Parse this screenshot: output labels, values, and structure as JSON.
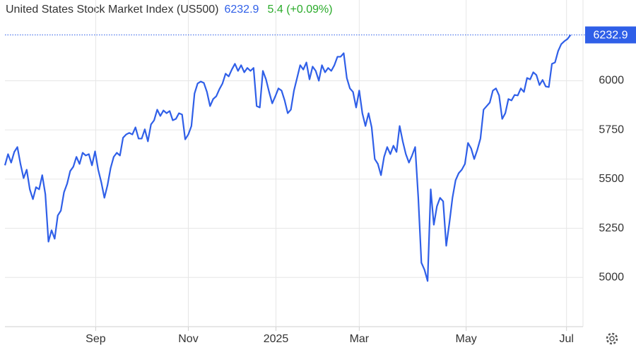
{
  "chart_data": {
    "type": "line",
    "title": "United States Stock Market Index (US500)",
    "change": "5.4 (+0.09%)",
    "series": [
      {
        "name": "US500",
        "color": "#2f5fe8",
        "values": [
          5570,
          5627,
          5584,
          5638,
          5663,
          5577,
          5505,
          5548,
          5448,
          5398,
          5459,
          5448,
          5520,
          5423,
          5182,
          5240,
          5197,
          5315,
          5340,
          5433,
          5476,
          5541,
          5563,
          5613,
          5577,
          5634,
          5620,
          5627,
          5570,
          5641,
          5548,
          5484,
          5405,
          5469,
          5556,
          5613,
          5634,
          5620,
          5710,
          5727,
          5735,
          5727,
          5763,
          5706,
          5706,
          5753,
          5692,
          5778,
          5799,
          5853,
          5821,
          5849,
          5835,
          5846,
          5799,
          5806,
          5835,
          5828,
          5702,
          5727,
          5770,
          5935,
          5986,
          5996,
          5989,
          5943,
          5871,
          5907,
          5921,
          5957,
          5986,
          6036,
          6022,
          6057,
          6086,
          6050,
          6079,
          6043,
          6065,
          6050,
          6065,
          5871,
          5864,
          6050,
          6007,
          5943,
          5885,
          5921,
          5961,
          5950,
          5900,
          5835,
          5853,
          5950,
          6014,
          6079,
          6057,
          6093,
          6007,
          6072,
          6050,
          6000,
          6079,
          6043,
          6065,
          6050,
          6079,
          6122,
          6122,
          6140,
          6014,
          5961,
          5943,
          5864,
          5950,
          5835,
          5770,
          5835,
          5763,
          5602,
          5577,
          5520,
          5613,
          5663,
          5627,
          5670,
          5638,
          5770,
          5692,
          5627,
          5584,
          5620,
          5663,
          5405,
          5075,
          5039,
          4982,
          5448,
          5268,
          5362,
          5405,
          5387,
          5161,
          5276,
          5405,
          5494,
          5530,
          5548,
          5577,
          5684,
          5656,
          5602,
          5649,
          5706,
          5853,
          5871,
          5889,
          5950,
          5961,
          5925,
          5806,
          5835,
          5907,
          5900,
          5928,
          5925,
          5961,
          5943,
          6014,
          6007,
          6043,
          6029,
          5978,
          6004,
          5971,
          5968,
          6086,
          6093,
          6151,
          6186,
          6201,
          6212,
          6232.9
        ]
      }
    ],
    "xlim": [
      0,
      186
    ],
    "xticks": [
      {
        "value": 29.2,
        "label": "Sep"
      },
      {
        "value": 59,
        "label": "Nov"
      },
      {
        "value": 87.2,
        "label": "2025"
      },
      {
        "value": 114,
        "label": "Mar"
      },
      {
        "value": 148.4,
        "label": "May"
      },
      {
        "value": 180.7,
        "label": "Jul"
      }
    ],
    "ylim": [
      4750,
      6310
    ],
    "yticks": [
      5000,
      5250,
      5500,
      5750,
      6000
    ],
    "grid": true
  }
}
